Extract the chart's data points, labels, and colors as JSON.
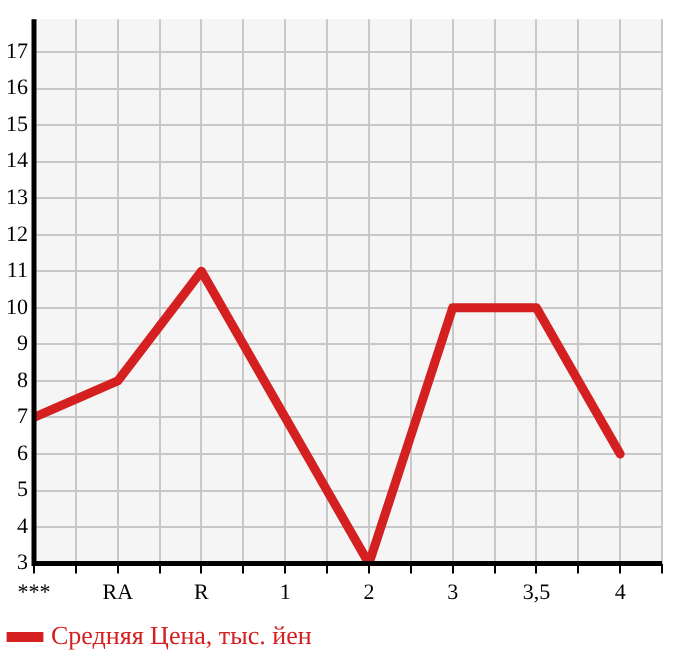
{
  "chart_data": {
    "type": "line",
    "categories": [
      "***",
      "RA",
      "R",
      "1",
      "2",
      "3",
      "3,5",
      "4"
    ],
    "series": [
      {
        "name": "Средняя Цена, тыс. йен",
        "color": "#d42020",
        "values": [
          7,
          8,
          11,
          7,
          3,
          10,
          10,
          6
        ]
      }
    ],
    "ylim": [
      3,
      17.9
    ],
    "yticks": [
      3,
      4,
      5,
      6,
      7,
      8,
      9,
      10,
      11,
      12,
      13,
      14,
      15,
      16,
      17
    ],
    "grid": true,
    "legend": "bottom left",
    "marker": "none",
    "line_style": "solid"
  }
}
